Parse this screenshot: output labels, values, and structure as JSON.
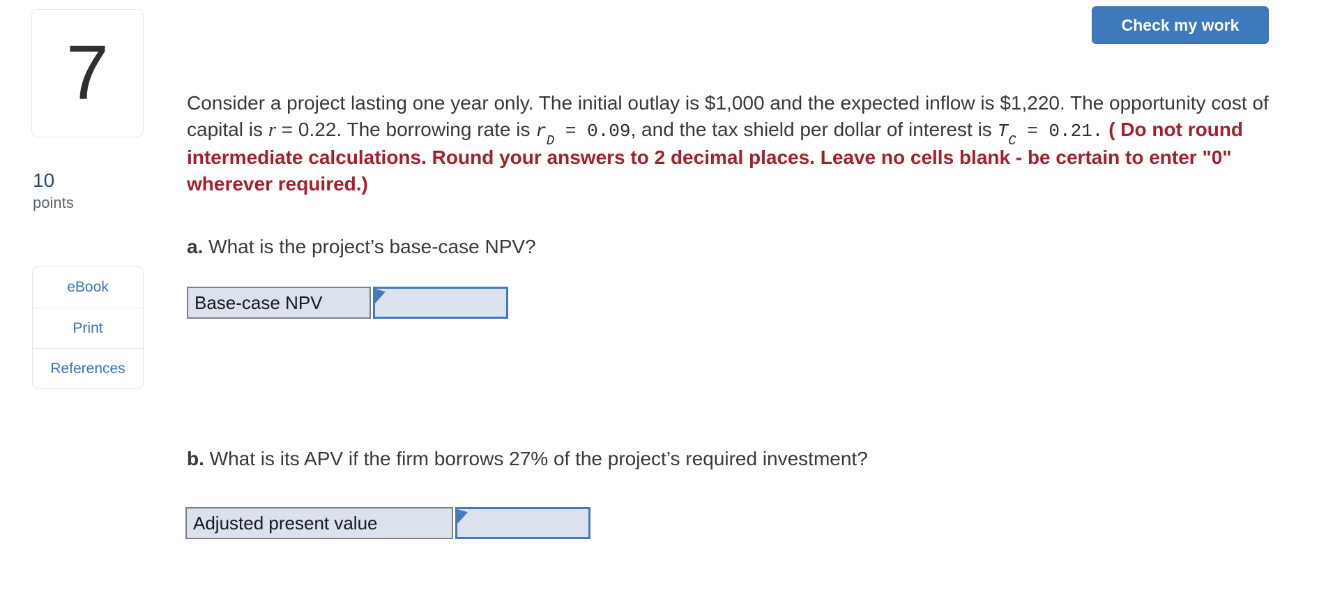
{
  "header": {
    "check_button_label": "Check my work"
  },
  "sidebar": {
    "question_number": "7",
    "points_value": "10",
    "points_label": "points",
    "resources": [
      {
        "label": "eBook"
      },
      {
        "label": "Print"
      },
      {
        "label": "References"
      }
    ]
  },
  "question": {
    "intro": {
      "seg1": "Consider a project lasting one year only. The initial outlay is $1,000 and the expected inflow is $1,220. The opportunity cost of capital is ",
      "r_var": "r",
      "seg2": " = 0.22. The borrowing rate is ",
      "rd_base": "r",
      "rd_sub": "D",
      "rd_eq": " = 0.09",
      "seg3": ", and the tax shield per dollar of interest is ",
      "tc_base": "T",
      "tc_sub": "C",
      "tc_eq": " = 0.21.",
      "warning": " ( Do not round intermediate calculations. Round your answers to 2 decimal places. Leave no cells blank - be certain to enter \"0\" wherever required.)"
    },
    "part_a": {
      "label": "a.",
      "text": " What is the project’s base-case NPV?",
      "row_label": "Base-case NPV",
      "input_value": ""
    },
    "part_b": {
      "label": "b.",
      "text": " What is its APV if the firm borrows 27% of the project’s required investment?",
      "row_label": "Adjusted present value",
      "input_value": ""
    }
  },
  "colors": {
    "accent_blue": "#3d79bb",
    "accent_blue_dark": "#3570b0",
    "link_blue": "#3b73b9",
    "navy": "#234a73",
    "warning_red": "#a51e2d",
    "cell_bg": "#dce1ee",
    "cell_border_blue": "#4779bd",
    "cell_border_gray": "#7e7f82"
  }
}
